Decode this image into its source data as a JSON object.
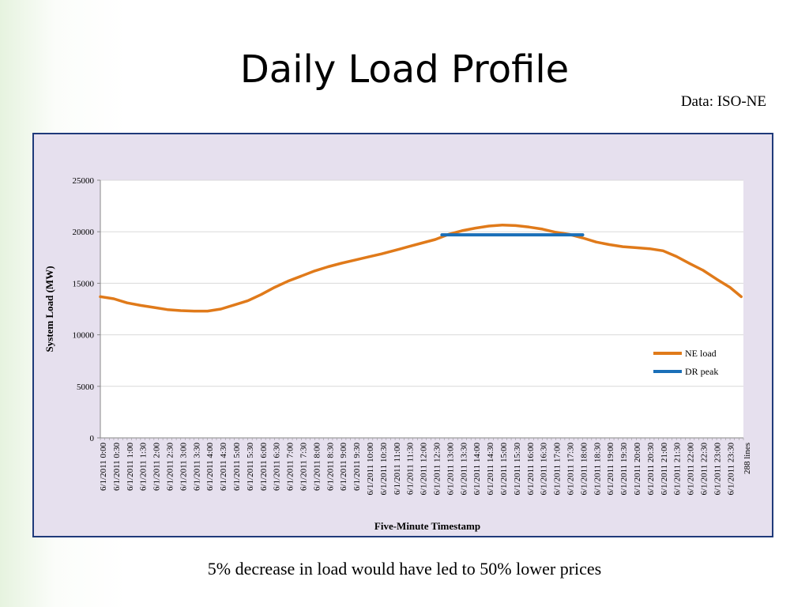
{
  "slide": {
    "title": "Daily Load Profile",
    "source": "Data: ISO-NE",
    "caption": "5% decrease in load would have led to 50% lower prices"
  },
  "chart_data": {
    "type": "line",
    "xlabel": "Five-Minute Timestamp",
    "ylabel": "System Load (MW)",
    "ylim": [
      0,
      25000
    ],
    "yticks": [
      0,
      5000,
      10000,
      15000,
      20000,
      25000
    ],
    "x_tick_labels": [
      "6/1/2011 0:00",
      "6/1/2011 0:30",
      "6/1/2011 1:00",
      "6/1/2011 1:30",
      "6/1/2011 2:00",
      "6/1/2011 2:30",
      "6/1/2011 3:00",
      "6/1/2011 3:30",
      "6/1/2011 4:00",
      "6/1/2011 4:30",
      "6/1/2011 5:00",
      "6/1/2011 5:30",
      "6/1/2011 6:00",
      "6/1/2011 6:30",
      "6/1/2011 7:00",
      "6/1/2011 7:30",
      "6/1/2011 8:00",
      "6/1/2011 8:30",
      "6/1/2011 9:00",
      "6/1/2011 9:30",
      "6/1/2011 10:00",
      "6/1/2011 10:30",
      "6/1/2011 11:00",
      "6/1/2011 11:30",
      "6/1/2011 12:00",
      "6/1/2011 12:30",
      "6/1/2011 13:00",
      "6/1/2011 13:30",
      "6/1/2011 14:00",
      "6/1/2011 14:30",
      "6/1/2011 15:00",
      "6/1/2011 15:30",
      "6/1/2011 16:00",
      "6/1/2011 16:30",
      "6/1/2011 17:00",
      "6/1/2011 17:30",
      "6/1/2011 18:00",
      "6/1/2011 18:30",
      "6/1/2011 19:00",
      "6/1/2011 19:30",
      "6/1/2011 20:00",
      "6/1/2011 20:30",
      "6/1/2011 21:00",
      "6/1/2011 21:30",
      "6/1/2011 22:00",
      "6/1/2011 22:30",
      "6/1/2011 23:00",
      "6/1/2011 23:30"
    ],
    "x_overflow_label": "288 lines",
    "grid": true,
    "legend_position": "right",
    "series": [
      {
        "name": "NE load",
        "color": "#e07a1a",
        "x": [
          "6/1/2011 0:00",
          "6/1/2011 0:30",
          "6/1/2011 1:00",
          "6/1/2011 1:30",
          "6/1/2011 2:00",
          "6/1/2011 2:30",
          "6/1/2011 3:00",
          "6/1/2011 3:30",
          "6/1/2011 4:00",
          "6/1/2011 4:30",
          "6/1/2011 5:00",
          "6/1/2011 5:30",
          "6/1/2011 6:00",
          "6/1/2011 6:30",
          "6/1/2011 7:00",
          "6/1/2011 7:30",
          "6/1/2011 8:00",
          "6/1/2011 8:30",
          "6/1/2011 9:00",
          "6/1/2011 9:30",
          "6/1/2011 10:00",
          "6/1/2011 10:30",
          "6/1/2011 11:00",
          "6/1/2011 11:30",
          "6/1/2011 12:00",
          "6/1/2011 12:30",
          "6/1/2011 13:00",
          "6/1/2011 13:30",
          "6/1/2011 14:00",
          "6/1/2011 14:30",
          "6/1/2011 15:00",
          "6/1/2011 15:30",
          "6/1/2011 16:00",
          "6/1/2011 16:30",
          "6/1/2011 17:00",
          "6/1/2011 17:30",
          "6/1/2011 18:00",
          "6/1/2011 18:30",
          "6/1/2011 19:00",
          "6/1/2011 19:30",
          "6/1/2011 20:00",
          "6/1/2011 20:30",
          "6/1/2011 21:00",
          "6/1/2011 21:30",
          "6/1/2011 22:00",
          "6/1/2011 22:30",
          "6/1/2011 23:00",
          "6/1/2011 23:30",
          "6/1/2011 23:55"
        ],
        "values": [
          13700,
          13500,
          13100,
          12850,
          12650,
          12450,
          12350,
          12300,
          12300,
          12500,
          12900,
          13300,
          13900,
          14600,
          15200,
          15700,
          16200,
          16600,
          16950,
          17250,
          17550,
          17850,
          18200,
          18550,
          18900,
          19250,
          19750,
          20100,
          20350,
          20550,
          20650,
          20600,
          20450,
          20250,
          19950,
          19750,
          19400,
          19000,
          18750,
          18550,
          18450,
          18350,
          18150,
          17600,
          16900,
          16250,
          15400,
          14600,
          13700
        ]
      },
      {
        "name": "DR peak",
        "color": "#1a6fb8",
        "x": [
          "6/1/2011 12:45",
          "6/1/2011 18:00"
        ],
        "values": [
          19700,
          19700
        ]
      }
    ]
  }
}
